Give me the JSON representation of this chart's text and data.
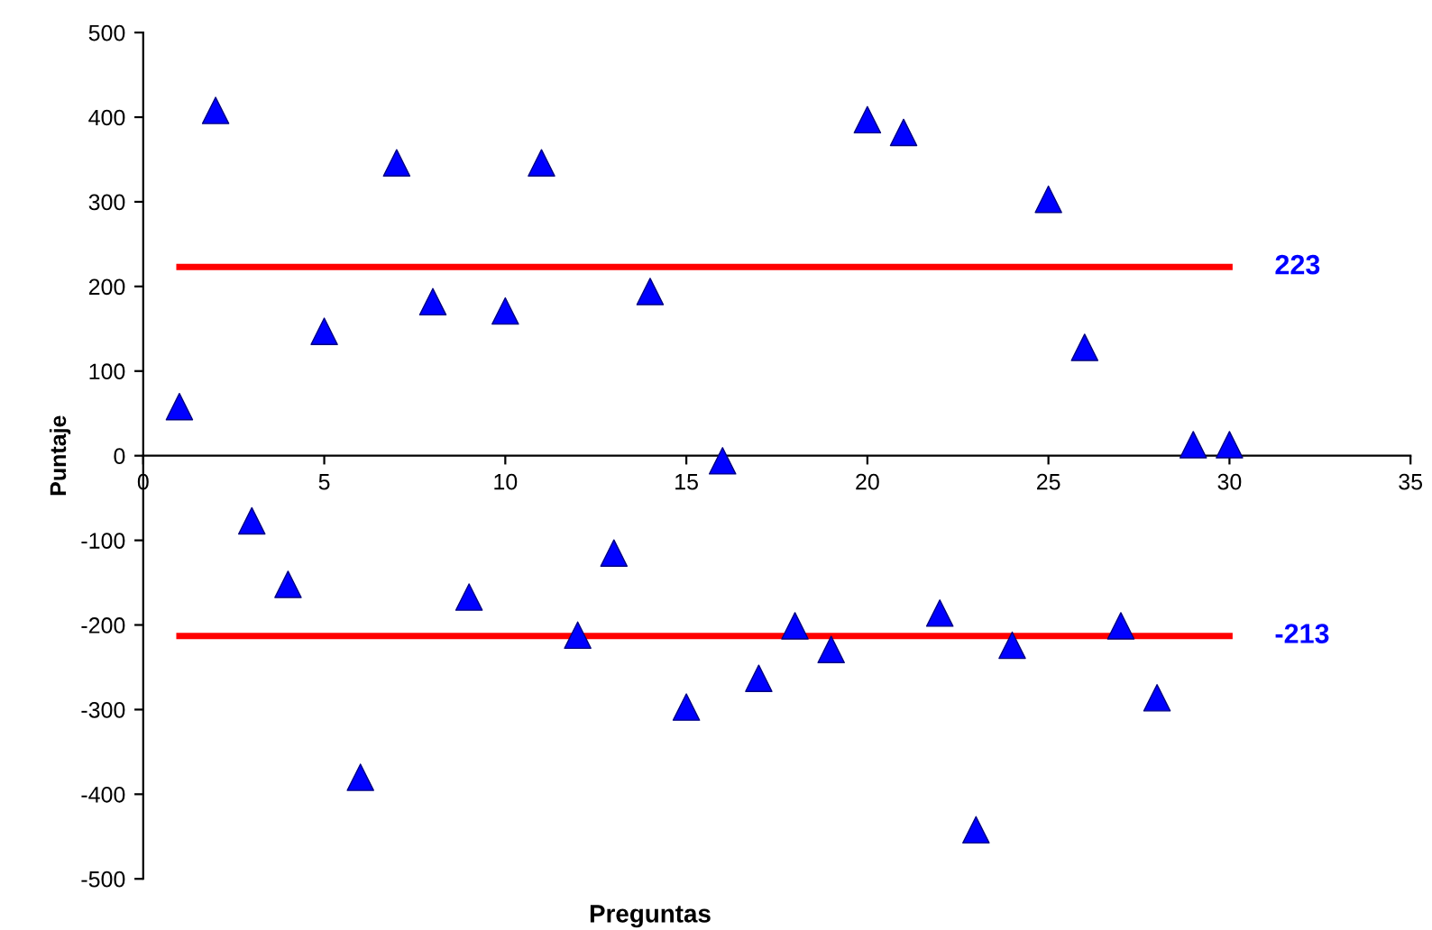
{
  "chart_data": {
    "type": "scatter",
    "xlabel": "Preguntas",
    "ylabel": "Puntaje",
    "xlim": [
      0,
      35
    ],
    "xticks": [
      0,
      5,
      10,
      15,
      20,
      25,
      30,
      35
    ],
    "ylim": [
      -500,
      500
    ],
    "yticks": [
      -500,
      -400,
      -300,
      -200,
      -100,
      0,
      100,
      200,
      300,
      400,
      500
    ],
    "grid": false,
    "legend": false,
    "series": [
      {
        "marker": "triangle",
        "color": "#0000ff",
        "x": [
          1,
          2,
          3,
          4,
          5,
          6,
          7,
          8,
          9,
          10,
          11,
          12,
          13,
          14,
          15,
          16,
          17,
          18,
          19,
          20,
          21,
          22,
          23,
          24,
          25,
          26,
          27,
          28,
          29,
          30
        ],
        "values": [
          58,
          408,
          -77,
          -152,
          147,
          -380,
          346,
          182,
          -167,
          171,
          346,
          -212,
          -115,
          194,
          -297,
          -6,
          -263,
          -201,
          -229,
          397,
          382,
          -186,
          -442,
          -224,
          303,
          128,
          -201,
          -286,
          13,
          13
        ]
      },
      {
        "type": "line",
        "marker": "none",
        "color": "#ff0000",
        "x": [
          1,
          30
        ],
        "values": [
          223,
          223
        ]
      },
      {
        "type": "line",
        "marker": "none",
        "color": "#ff0000",
        "x": [
          1,
          30
        ],
        "values": [
          -213,
          -213
        ]
      }
    ],
    "annotations": [
      {
        "text": "223",
        "x": 30,
        "y": 223
      },
      {
        "text": "-213",
        "x": 30,
        "y": -213
      }
    ]
  }
}
